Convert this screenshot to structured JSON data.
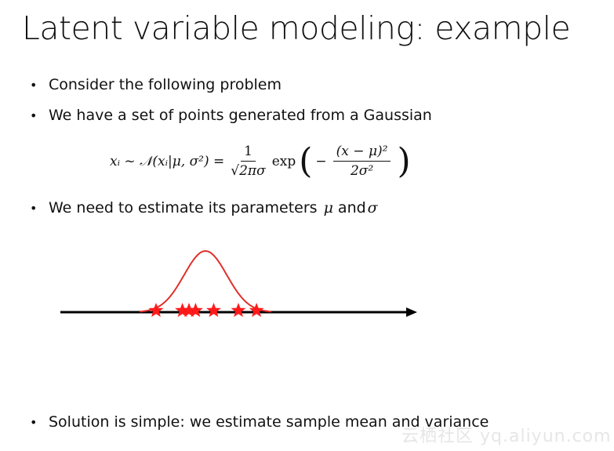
{
  "title": "Latent variable modeling: example",
  "bullets": [
    "Consider the following problem",
    "We have a set of points generated from a Gaussian",
    "We need to estimate its parameters",
    "Solution is simple: we estimate sample mean and variance"
  ],
  "params": {
    "mu": "μ",
    "and": "and",
    "sigma": "σ"
  },
  "formula": {
    "lhs": "xᵢ ~ 𝒩(xᵢ|μ, σ²) =",
    "frac1_num": "1",
    "frac1_den": "√2πσ",
    "exp": "exp",
    "open": "(",
    "minus": "−",
    "frac2_num": "(x − μ)²",
    "frac2_den": "2σ²",
    "close": ")"
  },
  "bullet_icon": "•",
  "diagram": {
    "axis_color": "#000000",
    "curve_color": "#e0302a",
    "star_color": "#ff1a1a",
    "points": [
      -3.0,
      -1.4,
      -1.0,
      -0.6,
      0.5,
      2.0,
      3.1
    ]
  },
  "watermark": "云栖社区 yq.aliyun.com"
}
